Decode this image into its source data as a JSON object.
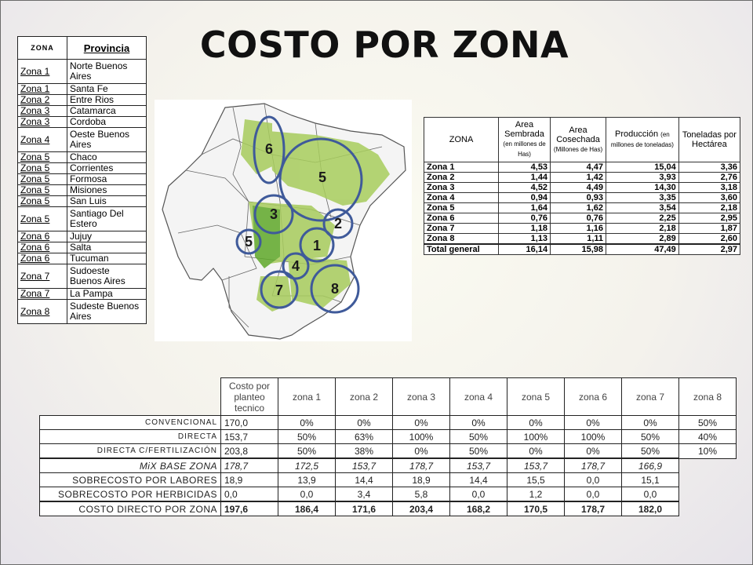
{
  "title": "COSTO POR ZONA",
  "zone_table": {
    "headers": [
      "ZONA",
      "Provincia"
    ],
    "rows": [
      {
        "zona": "Zona 1",
        "provincia": "Norte Buenos Aires",
        "tall": true
      },
      {
        "zona": "Zona 1",
        "provincia": "Santa Fe"
      },
      {
        "zona": "Zona 2",
        "provincia": "Entre Rios"
      },
      {
        "zona": "Zona 3",
        "provincia": "Catamarca"
      },
      {
        "zona": "Zona 3",
        "provincia": "Cordoba"
      },
      {
        "zona": "Zona 4",
        "provincia": "Oeste Buenos Aires",
        "tall": true
      },
      {
        "zona": "Zona 5",
        "provincia": "Chaco"
      },
      {
        "zona": "Zona 5",
        "provincia": "Corrientes"
      },
      {
        "zona": "Zona 5",
        "provincia": "Formosa"
      },
      {
        "zona": "Zona 5",
        "provincia": "Misiones"
      },
      {
        "zona": "Zona 5",
        "provincia": "San Luis"
      },
      {
        "zona": "Zona 5",
        "provincia": "Santiago Del Estero",
        "tall": true
      },
      {
        "zona": "Zona 6",
        "provincia": "Jujuy"
      },
      {
        "zona": "Zona 6",
        "provincia": "Salta"
      },
      {
        "zona": "Zona 6",
        "provincia": "Tucuman"
      },
      {
        "zona": "Zona 7",
        "provincia": "Sudoeste Buenos Aires",
        "tall": true
      },
      {
        "zona": "Zona 7",
        "provincia": "La Pampa"
      },
      {
        "zona": "Zona 8",
        "provincia": "Sudeste Buenos Aires",
        "tall": true
      }
    ]
  },
  "map": {
    "labels": [
      "6",
      "5",
      "3",
      "2",
      "5",
      "1",
      "4",
      "8",
      "7"
    ]
  },
  "area_table": {
    "headers": {
      "zona": "ZONA",
      "sembrada": "Area Sembrada",
      "sembrada_unit": "(en millones de Has)",
      "cosechada": "Area Cosechada",
      "cosechada_unit": "(Millones de Has)",
      "produccion": "Producción",
      "produccion_unit": "(en millones de toneladas)",
      "toneladas": "Toneladas por Hectárea"
    },
    "rows": [
      [
        "Zona 1",
        "4,53",
        "4,47",
        "15,04",
        "3,36"
      ],
      [
        "Zona 2",
        "1,44",
        "1,42",
        "3,93",
        "2,76"
      ],
      [
        "Zona 3",
        "4,52",
        "4,49",
        "14,30",
        "3,18"
      ],
      [
        "Zona 4",
        "0,94",
        "0,93",
        "3,35",
        "3,60"
      ],
      [
        "Zona 5",
        "1,64",
        "1,62",
        "3,54",
        "2,18"
      ],
      [
        "Zona 6",
        "0,76",
        "0,76",
        "2,25",
        "2,95"
      ],
      [
        "Zona 7",
        "1,18",
        "1,16",
        "2,18",
        "1,87"
      ],
      [
        "Zona 8",
        "1,13",
        "1,11",
        "2,89",
        "2,60"
      ],
      [
        "Total general",
        "16,14",
        "15,98",
        "47,49",
        "2,97"
      ]
    ]
  },
  "cost_table": {
    "header_first": "Costo por planteo tecnico",
    "zones": [
      "zona 1",
      "zona 2",
      "zona 3",
      "zona 4",
      "zona 5",
      "zona 6",
      "zona 7",
      "zona 8"
    ],
    "rows": [
      {
        "label": "CONVENCIONAL",
        "first": "170,0",
        "values": [
          "0%",
          "0%",
          "0%",
          "0%",
          "0%",
          "0%",
          "0%",
          "50%"
        ]
      },
      {
        "label": "DIRECTA",
        "first": "153,7",
        "values": [
          "50%",
          "63%",
          "100%",
          "50%",
          "100%",
          "100%",
          "50%",
          "40%"
        ]
      },
      {
        "label": "DIRECTA C/FERTILIZACIÓN",
        "first": "203,8",
        "values": [
          "50%",
          "38%",
          "0%",
          "50%",
          "0%",
          "0%",
          "50%",
          "10%"
        ]
      },
      {
        "label": "MiX BASE ZONA",
        "first": "178,7",
        "values": [
          "172,5",
          "153,7",
          "178,7",
          "153,7",
          "153,7",
          "178,7",
          "166,9"
        ],
        "merged_first": true
      },
      {
        "label": "SOBRECOSTO POR LABORES",
        "first": "18,9",
        "values": [
          "13,9",
          "14,4",
          "18,9",
          "14,4",
          "15,5",
          "0,0",
          "15,1"
        ],
        "merged_first": true
      },
      {
        "label": "SOBRECOSTO POR HERBICIDAS",
        "first": "0,0",
        "values": [
          "0,0",
          "3,4",
          "5,8",
          "0,0",
          "1,2",
          "0,0",
          "0,0"
        ],
        "merged_first": true
      },
      {
        "label": "COSTO DIRECTO POR ZONA",
        "first": "197,6",
        "values": [
          "186,4",
          "171,6",
          "203,4",
          "168,2",
          "170,5",
          "178,7",
          "182,0"
        ],
        "merged_first": true
      }
    ]
  }
}
